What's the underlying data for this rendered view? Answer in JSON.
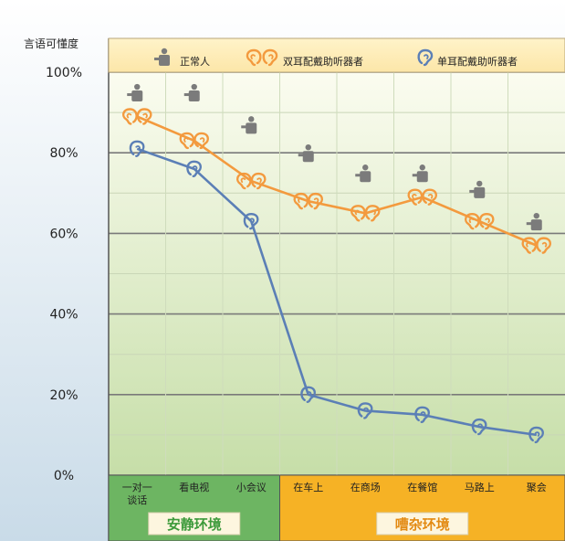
{
  "chart_data": {
    "type": "line",
    "ylabel": "言语可懂度",
    "yticks": [
      "100%",
      "80%",
      "60%",
      "40%",
      "20%",
      "0%"
    ],
    "ylim": [
      0,
      100
    ],
    "categories": [
      "一对一\n谈话",
      "看电视",
      "小会议",
      "在车上",
      "在商场",
      "在餐馆",
      "马路上",
      "聚会"
    ],
    "groups": [
      {
        "label": "安静环境",
        "span": [
          0,
          2
        ],
        "color": "#6db562"
      },
      {
        "label": "嘈杂环境",
        "span": [
          3,
          7
        ],
        "color": "#f6b225"
      }
    ],
    "legend": [
      "正常人",
      "双耳配戴助听器者",
      "单耳配戴助听器者"
    ],
    "series": [
      {
        "name": "正常人",
        "marker": "person-icon",
        "color": "#7b7b7b",
        "values": [
          95,
          95,
          87,
          80,
          75,
          75,
          71,
          63
        ]
      },
      {
        "name": "双耳配戴助听器者",
        "marker": "ear-pair-icon",
        "color": "#f39a3e",
        "values": [
          89,
          83,
          73,
          68,
          65,
          69,
          63,
          57
        ]
      },
      {
        "name": "单耳配戴助听器者",
        "marker": "ear-icon",
        "color": "#5b7fb6",
        "values": [
          81,
          76,
          63,
          20,
          16,
          15,
          12,
          10
        ]
      }
    ],
    "legend_position": "top",
    "grid": true
  }
}
